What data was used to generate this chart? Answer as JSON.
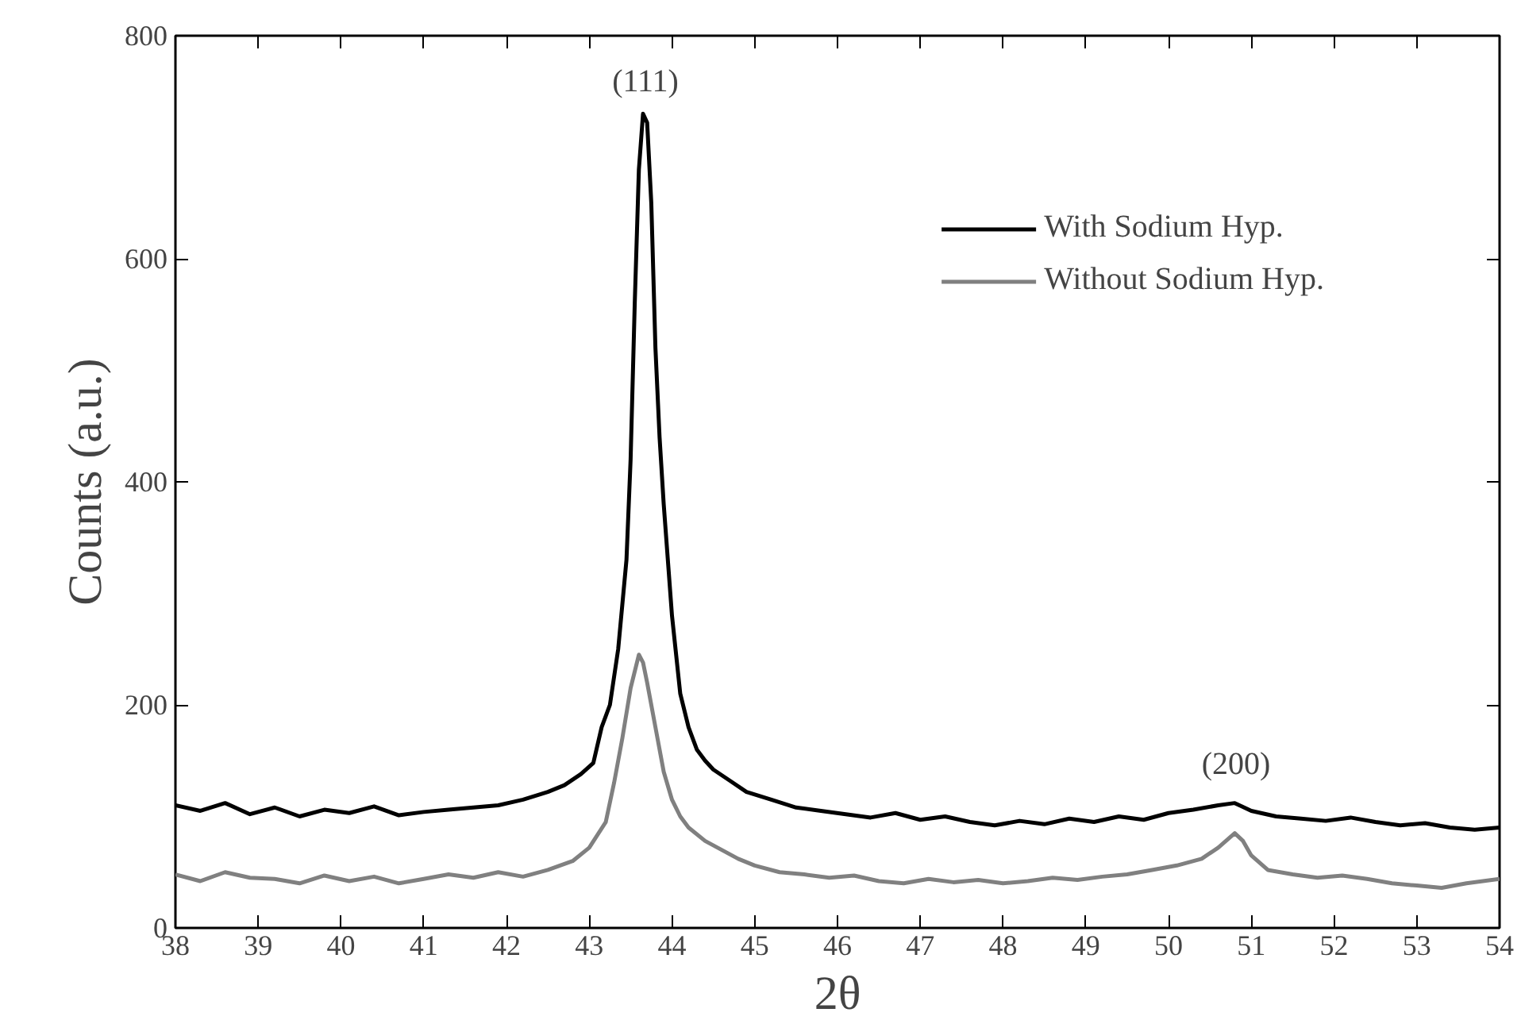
{
  "chart_data": {
    "type": "line",
    "xlabel": "2θ",
    "ylabel": "Counts (a.u.)",
    "xlim": [
      38,
      54
    ],
    "ylim": [
      0,
      800
    ],
    "xticks": [
      38,
      39,
      40,
      41,
      42,
      43,
      44,
      45,
      46,
      47,
      48,
      49,
      50,
      51,
      52,
      53,
      54
    ],
    "yticks": [
      0,
      200,
      400,
      600,
      800
    ],
    "grid": false,
    "legend": "top right",
    "line_style": "solid",
    "marker": "none",
    "annotations": [
      "(111)",
      "(200)"
    ],
    "series": [
      {
        "name": "With Sodium Hyp.",
        "color": "#000000",
        "x": [
          38,
          38.3,
          38.6,
          38.9,
          39.2,
          39.5,
          39.8,
          40.1,
          40.4,
          40.7,
          41,
          41.3,
          41.6,
          41.9,
          42.2,
          42.5,
          42.7,
          42.9,
          43.05,
          43.15,
          43.25,
          43.35,
          43.45,
          43.5,
          43.55,
          43.6,
          43.65,
          43.7,
          43.75,
          43.8,
          43.85,
          43.9,
          44,
          44.1,
          44.2,
          44.3,
          44.4,
          44.5,
          44.7,
          44.9,
          45.2,
          45.5,
          45.8,
          46.1,
          46.4,
          46.7,
          47,
          47.3,
          47.6,
          47.9,
          48.2,
          48.5,
          48.8,
          49.1,
          49.4,
          49.7,
          50,
          50.3,
          50.6,
          50.8,
          51,
          51.3,
          51.6,
          51.9,
          52.2,
          52.5,
          52.8,
          53.1,
          53.4,
          53.7,
          54
        ],
        "values": [
          110,
          105,
          112,
          102,
          108,
          100,
          106,
          103,
          109,
          101,
          104,
          106,
          108,
          110,
          115,
          122,
          128,
          138,
          148,
          180,
          200,
          250,
          330,
          420,
          560,
          680,
          730,
          722,
          650,
          520,
          440,
          380,
          280,
          210,
          180,
          160,
          150,
          142,
          132,
          122,
          115,
          108,
          105,
          102,
          99,
          103,
          97,
          100,
          95,
          92,
          96,
          93,
          98,
          95,
          100,
          97,
          103,
          106,
          110,
          112,
          105,
          100,
          98,
          96,
          99,
          95,
          92,
          94,
          90,
          88,
          90
        ]
      },
      {
        "name": "Without Sodium Hyp.",
        "color": "#808080",
        "x": [
          38,
          38.3,
          38.6,
          38.9,
          39.2,
          39.5,
          39.8,
          40.1,
          40.4,
          40.7,
          41,
          41.3,
          41.6,
          41.9,
          42.2,
          42.5,
          42.8,
          43,
          43.2,
          43.3,
          43.4,
          43.5,
          43.6,
          43.65,
          43.7,
          43.8,
          43.9,
          44,
          44.1,
          44.2,
          44.4,
          44.6,
          44.8,
          45,
          45.3,
          45.6,
          45.9,
          46.2,
          46.5,
          46.8,
          47.1,
          47.4,
          47.7,
          48,
          48.3,
          48.6,
          48.9,
          49.2,
          49.5,
          49.8,
          50.1,
          50.4,
          50.6,
          50.8,
          50.9,
          51,
          51.2,
          51.5,
          51.8,
          52.1,
          52.4,
          52.7,
          53,
          53.3,
          53.6,
          54
        ],
        "values": [
          48,
          42,
          50,
          45,
          44,
          40,
          47,
          42,
          46,
          40,
          44,
          48,
          45,
          50,
          46,
          52,
          60,
          72,
          95,
          130,
          170,
          215,
          245,
          238,
          220,
          180,
          140,
          115,
          100,
          90,
          78,
          70,
          62,
          56,
          50,
          48,
          45,
          47,
          42,
          40,
          44,
          41,
          43,
          40,
          42,
          45,
          43,
          46,
          48,
          52,
          56,
          62,
          72,
          85,
          78,
          65,
          52,
          48,
          45,
          47,
          44,
          40,
          38,
          36,
          40,
          44
        ]
      }
    ]
  }
}
